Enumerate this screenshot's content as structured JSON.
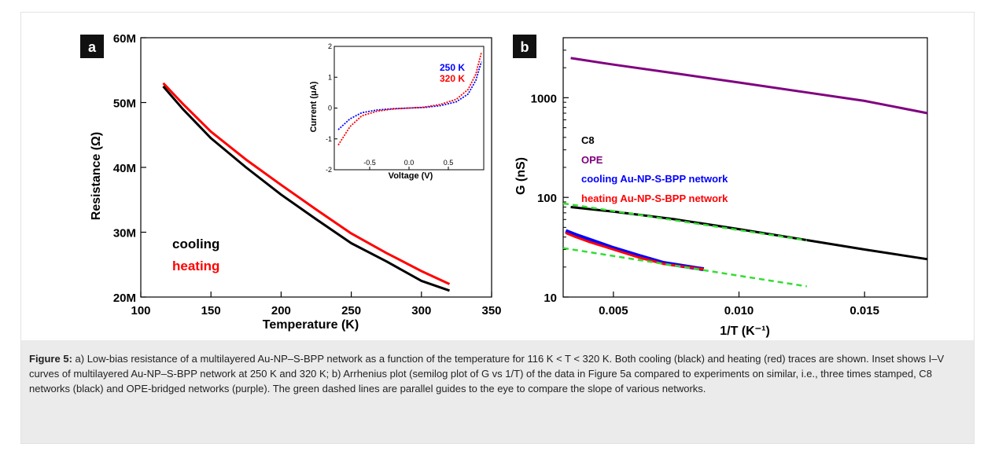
{
  "panel_a": {
    "letter": "a",
    "inset": {
      "legend": [
        "250 K",
        "320 K"
      ]
    },
    "legend": [
      "cooling",
      "heating"
    ]
  },
  "panel_b": {
    "letter": "b",
    "legend": [
      "C8",
      "OPE",
      "cooling Au-NP-S-BPP network",
      "heating Au-NP-S-BPP network"
    ]
  },
  "caption": {
    "label": "Figure 5:",
    "text": " a) Low-bias resistance of a multilayered Au-NP–S-BPP network as a function of the temperature for 116 K < T < 320 K. Both cooling (black) and heating (red) traces are shown. Inset shows I–V curves of multilayered Au-NP–S-BPP network at 250 K and 320 K; b) Arrhenius plot (semilog plot of G vs 1/T) of the data in Figure 5a compared to experiments on similar, i.e., three times stamped, C8 networks (black) and OPE-bridged networks (purple). The green dashed lines are parallel guides to the eye to compare the slope of various networks."
  },
  "colors": {
    "cooling": "#000000",
    "heating": "#ff0000",
    "c8": "#000000",
    "ope": "#800080",
    "cooling_bpp": "#0000ff",
    "heating_bpp": "#ff0000",
    "guide": "#33dd33",
    "inset_250": "#0000ff",
    "inset_320": "#ff0000"
  },
  "chart_data": [
    {
      "type": "line",
      "panel": "a",
      "xlabel": "Temperature (K)",
      "ylabel": "Resistance (Ω)",
      "xlim": [
        100,
        350
      ],
      "ylim": [
        20,
        60
      ],
      "y_unit_suffix": "M",
      "xticks": [
        100,
        150,
        200,
        250,
        300,
        350
      ],
      "yticks": [
        20,
        30,
        40,
        50,
        60
      ],
      "ytick_labels": [
        "20M",
        "30M",
        "40M",
        "50M",
        "60M"
      ],
      "series": [
        {
          "name": "cooling",
          "x": [
            116,
            130,
            150,
            175,
            200,
            225,
            250,
            275,
            300,
            320
          ],
          "y": [
            52.5,
            49.0,
            44.5,
            40.0,
            35.8,
            32.0,
            28.3,
            25.5,
            22.5,
            21.0
          ]
        },
        {
          "name": "heating",
          "x": [
            116,
            130,
            150,
            175,
            200,
            225,
            250,
            275,
            300,
            320
          ],
          "y": [
            53.0,
            49.8,
            45.5,
            41.2,
            37.3,
            33.5,
            29.8,
            26.8,
            24.0,
            22.0
          ]
        }
      ]
    },
    {
      "type": "line",
      "panel": "a-inset",
      "xlabel": "Voltage (V)",
      "ylabel": "Current (μA)",
      "xlim": [
        -0.95,
        0.95
      ],
      "ylim": [
        -2,
        2
      ],
      "xticks": [
        -0.5,
        0.0,
        0.5
      ],
      "xtick_labels": [
        "-0.5",
        "0.0",
        "0.5"
      ],
      "yticks": [
        -2,
        -1,
        0,
        1,
        2
      ],
      "series": [
        {
          "name": "250 K",
          "x": [
            -0.9,
            -0.75,
            -0.6,
            -0.4,
            -0.2,
            0,
            0.2,
            0.4,
            0.6,
            0.75,
            0.85,
            0.92
          ],
          "y": [
            -0.7,
            -0.35,
            -0.15,
            -0.06,
            -0.02,
            0,
            0.02,
            0.08,
            0.2,
            0.45,
            0.9,
            1.5
          ]
        },
        {
          "name": "320 K",
          "x": [
            -0.9,
            -0.75,
            -0.6,
            -0.4,
            -0.2,
            0,
            0.2,
            0.4,
            0.6,
            0.75,
            0.85,
            0.92
          ],
          "y": [
            -1.2,
            -0.6,
            -0.25,
            -0.1,
            -0.03,
            0,
            0.03,
            0.12,
            0.28,
            0.6,
            1.1,
            1.8
          ]
        }
      ]
    },
    {
      "type": "line",
      "panel": "b",
      "xlabel": "1/T (K⁻¹)",
      "ylabel": "G (nS)",
      "yscale": "log",
      "xlim": [
        0.003,
        0.0175
      ],
      "ylim": [
        10,
        4000
      ],
      "xticks": [
        0.005,
        0.01,
        0.015
      ],
      "xtick_labels": [
        "0.005",
        "0.010",
        "0.015"
      ],
      "yticks": [
        10,
        100,
        1000
      ],
      "series": [
        {
          "name": "OPE",
          "x": [
            0.0033,
            0.005,
            0.0075,
            0.01,
            0.0125,
            0.015,
            0.0175
          ],
          "y": [
            2500,
            2150,
            1750,
            1420,
            1150,
            930,
            700
          ]
        },
        {
          "name": "C8",
          "x": [
            0.0033,
            0.005,
            0.0075,
            0.01,
            0.0125,
            0.015,
            0.0175
          ],
          "y": [
            80,
            72,
            60,
            48,
            38,
            30,
            24
          ]
        },
        {
          "name": "cooling Au-NP-S-BPP network",
          "x": [
            0.0031,
            0.0035,
            0.004,
            0.005,
            0.006,
            0.007,
            0.0086
          ],
          "y": [
            46,
            42,
            38,
            31,
            26,
            22,
            19
          ]
        },
        {
          "name": "heating Au-NP-S-BPP network",
          "x": [
            0.0031,
            0.0035,
            0.004,
            0.005,
            0.006,
            0.007,
            0.0086
          ],
          "y": [
            44,
            40,
            36,
            30,
            25,
            21.5,
            19
          ]
        }
      ],
      "guides": [
        {
          "x": [
            0.003,
            0.0127
          ],
          "y": [
            87,
            37
          ]
        },
        {
          "x": [
            0.003,
            0.0127
          ],
          "y": [
            31,
            12.8
          ]
        }
      ]
    }
  ]
}
